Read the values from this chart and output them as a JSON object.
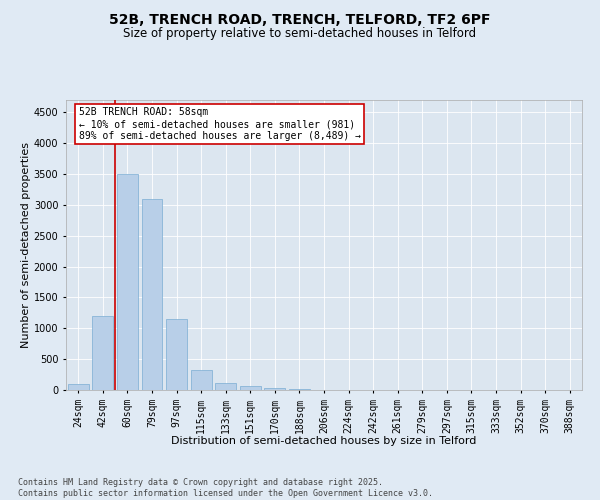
{
  "title_line1": "52B, TRENCH ROAD, TRENCH, TELFORD, TF2 6PF",
  "title_line2": "Size of property relative to semi-detached houses in Telford",
  "xlabel": "Distribution of semi-detached houses by size in Telford",
  "ylabel": "Number of semi-detached properties",
  "categories": [
    "24sqm",
    "42sqm",
    "60sqm",
    "79sqm",
    "97sqm",
    "115sqm",
    "133sqm",
    "151sqm",
    "170sqm",
    "188sqm",
    "206sqm",
    "224sqm",
    "242sqm",
    "261sqm",
    "279sqm",
    "297sqm",
    "315sqm",
    "333sqm",
    "352sqm",
    "370sqm",
    "388sqm"
  ],
  "values": [
    100,
    1200,
    3500,
    3100,
    1150,
    320,
    120,
    65,
    30,
    10,
    5,
    2,
    1,
    0,
    0,
    0,
    0,
    0,
    0,
    0,
    0
  ],
  "bar_color": "#b8cfe8",
  "bar_edge_color": "#7aadd4",
  "vline_color": "#cc0000",
  "vline_x": 1.5,
  "annotation_text": "52B TRENCH ROAD: 58sqm\n← 10% of semi-detached houses are smaller (981)\n89% of semi-detached houses are larger (8,489) →",
  "ylim": [
    0,
    4700
  ],
  "yticks": [
    0,
    500,
    1000,
    1500,
    2000,
    2500,
    3000,
    3500,
    4000,
    4500
  ],
  "bg_color": "#e0eaf4",
  "plot_bg": "#dce6f0",
  "footer": "Contains HM Land Registry data © Crown copyright and database right 2025.\nContains public sector information licensed under the Open Government Licence v3.0.",
  "title_fontsize": 10,
  "subtitle_fontsize": 8.5,
  "axis_label_fontsize": 8,
  "tick_fontsize": 7,
  "annot_fontsize": 7,
  "footer_fontsize": 6
}
